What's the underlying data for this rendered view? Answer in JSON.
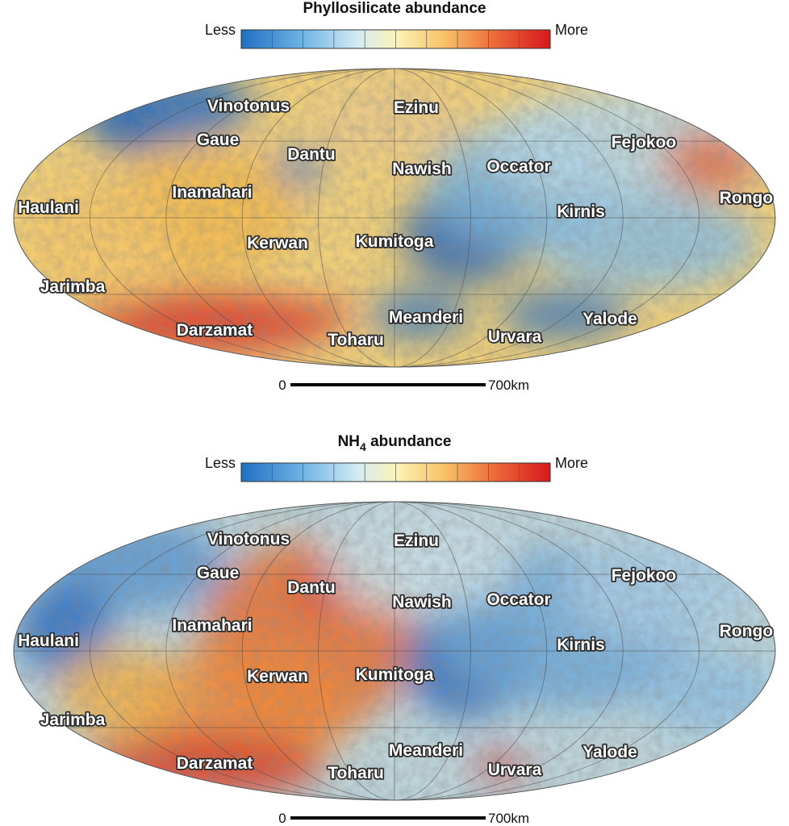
{
  "maps": [
    {
      "title": "Phyllosilicate abundance",
      "legend": {
        "low": "Less",
        "high": "More"
      },
      "labels": [
        "Vinotonus",
        "Ezinu",
        "Gaue",
        "Dantu",
        "Fejokoo",
        "Nawish",
        "Occator",
        "Inamahari",
        "Haulani",
        "Rongo",
        "Kirnis",
        "Kerwan",
        "Kumitoga",
        "Jarimba",
        "Meanderi",
        "Yalode",
        "Darzamat",
        "Toharu",
        "Urvara"
      ],
      "scale": {
        "start": "0",
        "end": "700km"
      }
    },
    {
      "title": {
        "base": "NH",
        "subscript": "4",
        "rest": " abundance"
      },
      "legend": {
        "low": "Less",
        "high": "More"
      },
      "labels": [
        "Vinotonus",
        "Ezinu",
        "Gaue",
        "Dantu",
        "Fejokoo",
        "Nawish",
        "Occator",
        "Inamahari",
        "Haulani",
        "Rongo",
        "Kirnis",
        "Kerwan",
        "Kumitoga",
        "Jarimba",
        "Meanderi",
        "Yalode",
        "Darzamat",
        "Toharu",
        "Urvara"
      ],
      "scale": {
        "start": "0",
        "end": "700km"
      }
    }
  ]
}
